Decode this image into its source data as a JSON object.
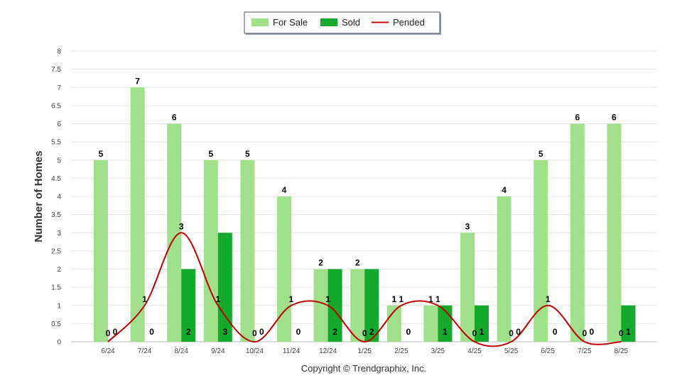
{
  "chart_data": {
    "type": "bar",
    "categories": [
      "6/24",
      "7/24",
      "8/24",
      "9/24",
      "10/24",
      "11/24",
      "12/24",
      "1/25",
      "2/25",
      "3/25",
      "4/25",
      "5/25",
      "6/25",
      "7/25",
      "8/25"
    ],
    "series": [
      {
        "name": "For Sale",
        "kind": "bar",
        "color": "#a0e08a",
        "values": [
          5,
          7,
          6,
          5,
          5,
          4,
          2,
          2,
          1,
          1,
          3,
          4,
          5,
          6,
          6
        ]
      },
      {
        "name": "Sold",
        "kind": "bar",
        "color": "#12a92c",
        "values": [
          0,
          0,
          2,
          3,
          0,
          0,
          2,
          2,
          0,
          1,
          1,
          0,
          0,
          0,
          1
        ]
      },
      {
        "name": "Pended",
        "kind": "line",
        "color": "#c00000",
        "values": [
          0,
          1,
          3,
          1,
          0,
          1,
          1,
          0,
          1,
          1,
          0,
          0,
          1,
          0,
          0
        ]
      }
    ],
    "ylabel": "Number of Homes",
    "ylim": [
      0,
      8
    ],
    "yticks": [
      "0",
      "0.5",
      "1",
      "1.5",
      "2",
      "2.5",
      "3",
      "3.5",
      "4",
      "4.5",
      "5",
      "5.5",
      "6",
      "6.5",
      "7",
      "7.5",
      "8"
    ],
    "grid": true,
    "legend_position": "top-center"
  },
  "footer": {
    "copyright": "Copyright © Trendgraphix, Inc."
  }
}
